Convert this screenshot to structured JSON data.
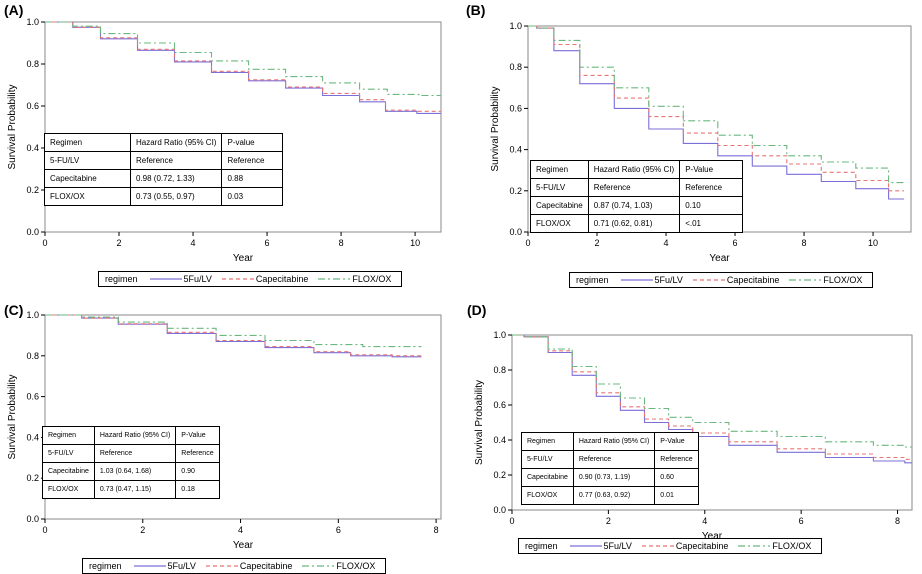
{
  "chart_data": [
    {
      "id": "A",
      "label": "(A)",
      "type": "line",
      "title": "",
      "xlabel": "Year",
      "ylabel": "Survival Probability",
      "xlim": [
        0,
        10.7
      ],
      "ylim": [
        0,
        1.0
      ],
      "xticks": [
        "0",
        "2",
        "4",
        "6",
        "8",
        "10"
      ],
      "yticks": [
        "0.0",
        "0.2",
        "0.4",
        "0.6",
        "0.8",
        "1.0"
      ],
      "xtick_values": [
        0,
        2,
        4,
        6,
        8,
        10
      ],
      "ytick_values": [
        0,
        0.2,
        0.4,
        0.6,
        0.8,
        1.0
      ],
      "series": [
        {
          "name": "5Fu/LV",
          "color": "#7b6fd8",
          "dash": "",
          "points": [
            [
              0,
              1.0
            ],
            [
              0.5,
              1.0
            ],
            [
              1,
              0.975
            ],
            [
              2,
              0.92
            ],
            [
              3,
              0.865
            ],
            [
              4,
              0.81
            ],
            [
              5,
              0.76
            ],
            [
              6,
              0.72
            ],
            [
              7,
              0.685
            ],
            [
              8,
              0.65
            ],
            [
              9,
              0.62
            ],
            [
              9.4,
              0.575
            ],
            [
              10.7,
              0.565
            ]
          ]
        },
        {
          "name": "Capecitabine",
          "color": "#e87575",
          "dash": "4,3",
          "points": [
            [
              0,
              1.0
            ],
            [
              0.5,
              1.0
            ],
            [
              1,
              0.975
            ],
            [
              2,
              0.925
            ],
            [
              3,
              0.87
            ],
            [
              4,
              0.815
            ],
            [
              5,
              0.765
            ],
            [
              6,
              0.725
            ],
            [
              7,
              0.69
            ],
            [
              8,
              0.66
            ],
            [
              9,
              0.63
            ],
            [
              9.4,
              0.58
            ],
            [
              10.7,
              0.575
            ]
          ]
        },
        {
          "name": "FLOX/OX",
          "color": "#6ab87e",
          "dash": "7,3,2,3",
          "points": [
            [
              0,
              1.0
            ],
            [
              0.5,
              1.0
            ],
            [
              1,
              0.98
            ],
            [
              2,
              0.945
            ],
            [
              3,
              0.9
            ],
            [
              4,
              0.855
            ],
            [
              5,
              0.815
            ],
            [
              6,
              0.775
            ],
            [
              7,
              0.74
            ],
            [
              8,
              0.71
            ],
            [
              9,
              0.68
            ],
            [
              9.5,
              0.655
            ],
            [
              10.7,
              0.65
            ]
          ]
        }
      ],
      "table": {
        "header": [
          "Regimen",
          "Hazard Ratio (95% CI)",
          "P-value"
        ],
        "rows": [
          [
            "5-FU/LV",
            "Reference",
            "Reference"
          ],
          [
            "Capecitabine",
            "0.98 (0.72, 1.33)",
            "0.88"
          ],
          [
            "FLOX/OX",
            "0.73 (0.55, 0.97)",
            "0.03"
          ]
        ]
      },
      "legend": {
        "title": "regimen",
        "entries": [
          "5Fu/LV",
          "Capecitabine",
          "FLOX/OX"
        ]
      }
    },
    {
      "id": "B",
      "label": "(B)",
      "type": "line",
      "title": "",
      "xlabel": "Year",
      "ylabel": "Survival Probability",
      "xlim": [
        0,
        11.1
      ],
      "ylim": [
        0,
        1.0
      ],
      "xticks": [
        "0",
        "2",
        "4",
        "6",
        "8",
        "10"
      ],
      "yticks": [
        "0.0",
        "0.2",
        "0.4",
        "0.6",
        "0.8",
        "1.0"
      ],
      "xtick_values": [
        0,
        2,
        4,
        6,
        8,
        10
      ],
      "ytick_values": [
        0,
        0.2,
        0.4,
        0.6,
        0.8,
        1.0
      ],
      "series": [
        {
          "name": "5Fu/LV",
          "color": "#7b6fd8",
          "dash": "",
          "points": [
            [
              0,
              1.0
            ],
            [
              0.5,
              0.99
            ],
            [
              1,
              0.88
            ],
            [
              2,
              0.72
            ],
            [
              3,
              0.6
            ],
            [
              4,
              0.5
            ],
            [
              5,
              0.43
            ],
            [
              6,
              0.37
            ],
            [
              7,
              0.32
            ],
            [
              8,
              0.28
            ],
            [
              9,
              0.245
            ],
            [
              10,
              0.21
            ],
            [
              10.9,
              0.16
            ]
          ]
        },
        {
          "name": "Capecitabine",
          "color": "#e87575",
          "dash": "4,3",
          "points": [
            [
              0,
              1.0
            ],
            [
              0.5,
              0.99
            ],
            [
              1,
              0.91
            ],
            [
              2,
              0.76
            ],
            [
              3,
              0.65
            ],
            [
              4,
              0.56
            ],
            [
              5,
              0.48
            ],
            [
              6,
              0.42
            ],
            [
              7,
              0.37
            ],
            [
              8,
              0.33
            ],
            [
              9,
              0.29
            ],
            [
              10,
              0.25
            ],
            [
              10.9,
              0.2
            ]
          ]
        },
        {
          "name": "FLOX/OX",
          "color": "#6ab87e",
          "dash": "7,3,2,3",
          "points": [
            [
              0,
              1.0
            ],
            [
              0.5,
              0.99
            ],
            [
              1,
              0.93
            ],
            [
              2,
              0.8
            ],
            [
              3,
              0.7
            ],
            [
              4,
              0.61
            ],
            [
              5,
              0.54
            ],
            [
              6,
              0.47
            ],
            [
              7,
              0.42
            ],
            [
              8,
              0.37
            ],
            [
              9,
              0.34
            ],
            [
              10,
              0.31
            ],
            [
              10.9,
              0.24
            ]
          ]
        }
      ],
      "table": {
        "header": [
          "Regimen",
          "Hazard Ratio (95% CI)",
          "P-Value"
        ],
        "rows": [
          [
            "5-FU/LV",
            "Reference",
            "Reference"
          ],
          [
            "Capecitabine",
            "0.87 (0.74, 1.03)",
            "0.10"
          ],
          [
            "FLOX/OX",
            "0.71 (0.62, 0.81)",
            "<.01"
          ]
        ]
      },
      "legend": {
        "title": "regimen",
        "entries": [
          "5Fu/LV",
          "Capecitabine",
          "FLOX/OX"
        ]
      }
    },
    {
      "id": "C",
      "label": "(C)",
      "type": "line",
      "title": "",
      "xlabel": "Year",
      "ylabel": "Survival Probability",
      "xlim": [
        0,
        8.1
      ],
      "ylim": [
        0,
        1.0
      ],
      "xticks": [
        "0",
        "2",
        "4",
        "6",
        "8"
      ],
      "yticks": [
        "0.0",
        "0.2",
        "0.4",
        "0.6",
        "0.8",
        "1.0"
      ],
      "xtick_values": [
        0,
        2,
        4,
        6,
        8
      ],
      "ytick_values": [
        0,
        0.2,
        0.4,
        0.6,
        0.8,
        1.0
      ],
      "series": [
        {
          "name": "5Fu/LV",
          "color": "#7b6fd8",
          "dash": "",
          "points": [
            [
              0,
              1.0
            ],
            [
              0.5,
              1.0
            ],
            [
              1,
              0.985
            ],
            [
              2,
              0.955
            ],
            [
              3,
              0.91
            ],
            [
              4,
              0.87
            ],
            [
              5,
              0.84
            ],
            [
              6,
              0.815
            ],
            [
              6.5,
              0.8
            ],
            [
              7.7,
              0.795
            ]
          ]
        },
        {
          "name": "Capecitabine",
          "color": "#e87575",
          "dash": "4,3",
          "points": [
            [
              0,
              1.0
            ],
            [
              0.5,
              1.0
            ],
            [
              1,
              0.985
            ],
            [
              2,
              0.957
            ],
            [
              3,
              0.915
            ],
            [
              4,
              0.875
            ],
            [
              5,
              0.845
            ],
            [
              6,
              0.82
            ],
            [
              6.5,
              0.805
            ],
            [
              7.7,
              0.8
            ]
          ]
        },
        {
          "name": "FLOX/OX",
          "color": "#6ab87e",
          "dash": "7,3,2,3",
          "points": [
            [
              0,
              1.0
            ],
            [
              0.5,
              1.0
            ],
            [
              1,
              0.99
            ],
            [
              2,
              0.965
            ],
            [
              3,
              0.935
            ],
            [
              4,
              0.9
            ],
            [
              5,
              0.875
            ],
            [
              6,
              0.855
            ],
            [
              7,
              0.845
            ],
            [
              7.7,
              0.845
            ]
          ]
        }
      ],
      "table": {
        "header": [
          "Regimen",
          "Hazard Ratio (95% CI)",
          "P-Value"
        ],
        "rows": [
          [
            "5-FU/LV",
            "Reference",
            "Reference"
          ],
          [
            "Capecitabine",
            "1.03 (0.64, 1.68)",
            "0.90"
          ],
          [
            "FLOX/OX",
            "0.73 (0.47, 1.15)",
            "0.18"
          ]
        ]
      },
      "legend": {
        "title": "regimen",
        "entries": [
          "5Fu/LV",
          "Capecitabine",
          "FLOX/OX"
        ]
      }
    },
    {
      "id": "D",
      "label": "(D)",
      "type": "line",
      "title": "",
      "xlabel": "Year",
      "ylabel": "Survival Probability",
      "xlim": [
        0,
        8.3
      ],
      "ylim": [
        0,
        1.0
      ],
      "xticks": [
        "0",
        "2",
        "4",
        "6",
        "8"
      ],
      "yticks": [
        "0.0",
        "0.2",
        "0.4",
        "0.6",
        "0.8",
        "1.0"
      ],
      "xtick_values": [
        0,
        2,
        4,
        6,
        8
      ],
      "ytick_values": [
        0,
        0.2,
        0.4,
        0.6,
        0.8,
        1.0
      ],
      "series": [
        {
          "name": "5Fu/LV",
          "color": "#7b6fd8",
          "dash": "",
          "points": [
            [
              0,
              1.0
            ],
            [
              0.5,
              0.99
            ],
            [
              1,
              0.9
            ],
            [
              1.5,
              0.77
            ],
            [
              2,
              0.65
            ],
            [
              2.5,
              0.57
            ],
            [
              3,
              0.5
            ],
            [
              3.5,
              0.46
            ],
            [
              4,
              0.42
            ],
            [
              5,
              0.37
            ],
            [
              6,
              0.33
            ],
            [
              7,
              0.3
            ],
            [
              8,
              0.28
            ],
            [
              8.3,
              0.27
            ]
          ]
        },
        {
          "name": "Capecitabine",
          "color": "#e87575",
          "dash": "4,3",
          "points": [
            [
              0,
              1.0
            ],
            [
              0.5,
              0.99
            ],
            [
              1,
              0.91
            ],
            [
              1.5,
              0.79
            ],
            [
              2,
              0.67
            ],
            [
              2.5,
              0.59
            ],
            [
              3,
              0.52
            ],
            [
              3.5,
              0.48
            ],
            [
              4,
              0.44
            ],
            [
              5,
              0.39
            ],
            [
              6,
              0.35
            ],
            [
              7,
              0.32
            ],
            [
              8,
              0.3
            ],
            [
              8.3,
              0.29
            ]
          ]
        },
        {
          "name": "FLOX/OX",
          "color": "#6ab87e",
          "dash": "7,3,2,3",
          "points": [
            [
              0,
              1.0
            ],
            [
              0.5,
              0.99
            ],
            [
              1,
              0.92
            ],
            [
              1.5,
              0.82
            ],
            [
              2,
              0.72
            ],
            [
              2.5,
              0.64
            ],
            [
              3,
              0.58
            ],
            [
              3.5,
              0.53
            ],
            [
              4,
              0.5
            ],
            [
              5,
              0.45
            ],
            [
              6,
              0.42
            ],
            [
              7,
              0.39
            ],
            [
              8,
              0.37
            ],
            [
              8.3,
              0.36
            ]
          ]
        }
      ],
      "table": {
        "header": [
          "Regimen",
          "Hazard Ratio (95% CI)",
          "P-Value"
        ],
        "rows": [
          [
            "5-FU/LV",
            "Reference",
            "Reference"
          ],
          [
            "Capecitabine",
            "0.90 (0.73, 1.19)",
            "0.60"
          ],
          [
            "FLOX/OX",
            "0.77 (0.63, 0.92)",
            "0.01"
          ]
        ]
      },
      "legend": {
        "title": "regimen",
        "entries": [
          "5Fu/LV",
          "Capecitabine",
          "FLOX/OX"
        ]
      }
    }
  ]
}
